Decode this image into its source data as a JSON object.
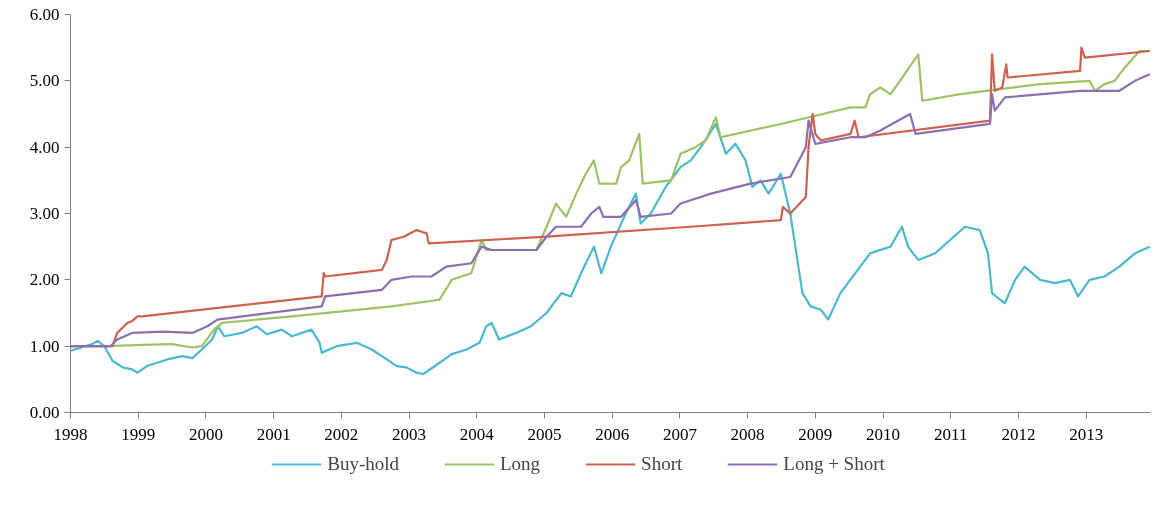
{
  "chart_data": {
    "type": "line",
    "xlim": [
      1998,
      2013.95
    ],
    "ylim": [
      0,
      6
    ],
    "xticks": [
      1998,
      1999,
      2000,
      2001,
      2002,
      2003,
      2004,
      2005,
      2006,
      2007,
      2008,
      2009,
      2010,
      2011,
      2012,
      2013
    ],
    "yticks": [
      {
        "value": 0,
        "label": "0.00"
      },
      {
        "value": 1,
        "label": "1.00"
      },
      {
        "value": 2,
        "label": "2.00"
      },
      {
        "value": 3,
        "label": "3.00"
      },
      {
        "value": 4,
        "label": "4.00"
      },
      {
        "value": 5,
        "label": "5.00"
      },
      {
        "value": 6,
        "label": "6.00"
      }
    ],
    "grid": false,
    "legend": "bottom",
    "marker": "none",
    "line_style": "solid",
    "series": [
      {
        "name": "Buy-hold",
        "color": "#4bb8d0",
        "x": [
          1998.0,
          1998.32,
          1998.4,
          1998.5,
          1998.62,
          1998.77,
          1998.91,
          1998.99,
          1999.13,
          1999.43,
          1999.65,
          1999.8,
          1999.94,
          2000.09,
          2000.18,
          2000.27,
          2000.53,
          2000.75,
          2000.9,
          2001.12,
          2001.27,
          2001.56,
          2001.68,
          2001.71,
          2001.93,
          2002.23,
          2002.45,
          2002.67,
          2002.82,
          2002.96,
          2003.11,
          2003.21,
          2003.41,
          2003.63,
          2003.85,
          2004.04,
          2004.14,
          2004.22,
          2004.33,
          2004.58,
          2004.8,
          2005.03,
          2005.25,
          2005.39,
          2005.54,
          2005.73,
          2005.84,
          2005.98,
          2006.2,
          2006.35,
          2006.42,
          2006.57,
          2006.79,
          2007.01,
          2007.16,
          2007.31,
          2007.53,
          2007.68,
          2007.82,
          2007.97,
          2008.07,
          2008.19,
          2008.31,
          2008.49,
          2008.63,
          2008.75,
          2008.81,
          2008.93,
          2009.08,
          2009.19,
          2009.37,
          2009.59,
          2009.81,
          2010.11,
          2010.28,
          2010.37,
          2010.52,
          2010.77,
          2010.99,
          2011.21,
          2011.43,
          2011.55,
          2011.61,
          2011.73,
          2011.8,
          2011.95,
          2012.09,
          2012.32,
          2012.54,
          2012.76,
          2012.88,
          2013.05,
          2013.27,
          2013.49,
          2013.72,
          2013.94
        ],
        "values": [
          0.93,
          1.03,
          1.08,
          1.0,
          0.78,
          0.68,
          0.65,
          0.6,
          0.7,
          0.8,
          0.85,
          0.82,
          0.95,
          1.1,
          1.3,
          1.15,
          1.2,
          1.3,
          1.18,
          1.25,
          1.15,
          1.25,
          1.05,
          0.9,
          1.0,
          1.05,
          0.95,
          0.8,
          0.7,
          0.68,
          0.6,
          0.58,
          0.72,
          0.88,
          0.95,
          1.05,
          1.3,
          1.35,
          1.1,
          1.2,
          1.3,
          1.5,
          1.8,
          1.75,
          2.1,
          2.5,
          2.1,
          2.5,
          3.0,
          3.3,
          2.85,
          3.0,
          3.4,
          3.7,
          3.8,
          4.0,
          4.35,
          3.9,
          4.05,
          3.8,
          3.4,
          3.5,
          3.3,
          3.6,
          3.0,
          2.2,
          1.8,
          1.6,
          1.55,
          1.4,
          1.8,
          2.1,
          2.4,
          2.5,
          2.8,
          2.5,
          2.3,
          2.4,
          2.6,
          2.8,
          2.75,
          2.4,
          1.8,
          1.7,
          1.65,
          2.0,
          2.2,
          2.0,
          1.95,
          2.0,
          1.75,
          2.0,
          2.05,
          2.2,
          2.4,
          2.5
        ]
      },
      {
        "name": "Long",
        "color": "#9dc266",
        "x": [
          1998.0,
          1998.54,
          1999.06,
          1999.5,
          1999.8,
          1999.94,
          2000.12,
          2000.24,
          2001.27,
          2002.74,
          2003.45,
          2003.63,
          2003.77,
          2003.92,
          2004.07,
          2004.14,
          2004.88,
          2005.03,
          2005.17,
          2005.32,
          2005.47,
          2005.61,
          2005.73,
          2005.81,
          2006.06,
          2006.13,
          2006.25,
          2006.4,
          2006.45,
          2006.87,
          2007.01,
          2007.23,
          2007.38,
          2007.53,
          2007.6,
          2008.49,
          2009.52,
          2009.74,
          2009.81,
          2009.96,
          2010.11,
          2010.25,
          2010.52,
          2010.58,
          2011.14,
          2012.32,
          2013.05,
          2013.13,
          2013.27,
          2013.42,
          2013.57,
          2013.79,
          2013.94
        ],
        "values": [
          1.0,
          1.0,
          1.02,
          1.03,
          0.98,
          1.0,
          1.25,
          1.35,
          1.45,
          1.6,
          1.7,
          2.0,
          2.05,
          2.1,
          2.6,
          2.45,
          2.45,
          2.8,
          3.15,
          2.95,
          3.3,
          3.6,
          3.8,
          3.45,
          3.45,
          3.7,
          3.8,
          4.2,
          3.45,
          3.5,
          3.9,
          4.0,
          4.1,
          4.45,
          4.15,
          4.35,
          4.6,
          4.6,
          4.8,
          4.9,
          4.8,
          5.0,
          5.4,
          4.7,
          4.8,
          4.95,
          5.0,
          4.85,
          4.95,
          5.0,
          5.2,
          5.45,
          5.45
        ]
      },
      {
        "name": "Short",
        "color": "#d0604f",
        "x": [
          1998.0,
          1998.62,
          1998.69,
          1998.84,
          1998.91,
          1998.99,
          1999.06,
          2001.71,
          2001.74,
          2001.76,
          2002.6,
          2002.67,
          2002.74,
          2002.92,
          2003.11,
          2003.26,
          2003.29,
          2005.03,
          2007.16,
          2008.49,
          2008.52,
          2008.63,
          2008.86,
          2008.9,
          2008.96,
          2009.0,
          2009.08,
          2009.52,
          2009.58,
          2009.64,
          2011.58,
          2011.61,
          2011.65,
          2011.76,
          2011.82,
          2011.84,
          2012.91,
          2012.93,
          2012.98,
          2013.94
        ],
        "values": [
          1.0,
          1.0,
          1.2,
          1.35,
          1.38,
          1.45,
          1.45,
          1.75,
          2.1,
          2.05,
          2.15,
          2.3,
          2.6,
          2.65,
          2.75,
          2.7,
          2.55,
          2.65,
          2.8,
          2.9,
          3.1,
          3.0,
          3.25,
          4.0,
          4.5,
          4.2,
          4.1,
          4.2,
          4.4,
          4.15,
          4.4,
          5.4,
          4.85,
          4.9,
          5.25,
          5.05,
          5.15,
          5.5,
          5.35,
          5.45
        ]
      },
      {
        "name": "Long + Short",
        "color": "#8a70b0",
        "x": [
          1998.0,
          1998.59,
          1998.69,
          1998.91,
          1999.36,
          1999.8,
          2000.02,
          2000.17,
          2001.71,
          2001.76,
          2002.6,
          2002.74,
          2003.04,
          2003.33,
          2003.55,
          2003.92,
          2004.07,
          2004.22,
          2004.88,
          2005.03,
          2005.17,
          2005.54,
          2005.69,
          2005.81,
          2005.87,
          2006.13,
          2006.35,
          2006.42,
          2006.87,
          2007.01,
          2007.46,
          2008.04,
          2008.63,
          2008.86,
          2008.9,
          2009.0,
          2009.52,
          2009.74,
          2009.96,
          2010.4,
          2010.48,
          2011.58,
          2011.61,
          2011.65,
          2011.8,
          2012.91,
          2013.49,
          2013.72,
          2013.94
        ],
        "values": [
          1.0,
          1.0,
          1.1,
          1.2,
          1.22,
          1.2,
          1.3,
          1.4,
          1.6,
          1.75,
          1.85,
          2.0,
          2.05,
          2.05,
          2.2,
          2.25,
          2.5,
          2.45,
          2.45,
          2.65,
          2.8,
          2.8,
          3.0,
          3.1,
          2.95,
          2.95,
          3.2,
          2.95,
          3.0,
          3.15,
          3.3,
          3.45,
          3.55,
          4.0,
          4.4,
          4.05,
          4.15,
          4.15,
          4.25,
          4.5,
          4.2,
          4.35,
          4.8,
          4.55,
          4.75,
          4.85,
          4.85,
          5.0,
          5.1
        ]
      }
    ]
  }
}
